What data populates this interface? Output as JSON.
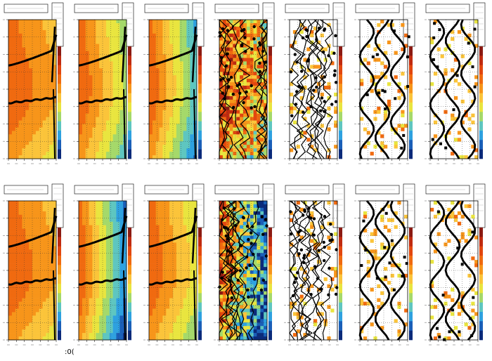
{
  "figure": {
    "footer_text": ":0(",
    "colors": {
      "palette_hot": [
        "#8b1a12",
        "#c02b10",
        "#e2470f",
        "#f06a10",
        "#f7951a",
        "#fbc43a",
        "#e9e53f",
        "#a5d96a",
        "#5ec6c0",
        "#2ea1e0",
        "#1a5fb8",
        "#0b2a7a"
      ],
      "marker": "#000000",
      "frame": "#000000",
      "grid": "#444444"
    }
  },
  "chart_data": [
    {
      "type": "heatmap",
      "row": 1,
      "col": 1,
      "title": "",
      "pattern": "smooth",
      "tilt": 0.25,
      "stripe_right": 0.92,
      "curves": [
        "upper",
        "lower"
      ]
    },
    {
      "type": "heatmap",
      "row": 1,
      "col": 2,
      "title": "",
      "pattern": "smooth",
      "tilt": 0.55,
      "stripe_right": 0.78,
      "curves": [
        "upper",
        "lower"
      ]
    },
    {
      "type": "heatmap",
      "row": 1,
      "col": 3,
      "title": "",
      "pattern": "smooth",
      "tilt": 0.75,
      "stripe_right": 0.7,
      "curves": [
        "upper",
        "lower"
      ]
    },
    {
      "type": "heatmap",
      "row": 1,
      "col": 4,
      "title": "",
      "pattern": "noisy",
      "tilt": 0.3,
      "stripe_right": 0.6,
      "curves": [
        "scatter"
      ]
    },
    {
      "type": "heatmap",
      "row": 1,
      "col": 5,
      "title": "",
      "pattern": "sparse",
      "tilt": 0.0,
      "stripe_right": 0.0,
      "curves": [
        "scatter"
      ]
    },
    {
      "type": "heatmap",
      "row": 1,
      "col": 6,
      "title": "",
      "pattern": "sparse",
      "tilt": 0.0,
      "stripe_right": 0.0,
      "curves": [
        "wavy"
      ]
    },
    {
      "type": "heatmap",
      "row": 1,
      "col": 7,
      "title": "",
      "pattern": "sparse",
      "tilt": 0.0,
      "stripe_right": 0.0,
      "curves": [
        "wavy"
      ]
    },
    {
      "type": "heatmap",
      "row": 2,
      "col": 1,
      "title": "",
      "pattern": "smooth",
      "tilt": 0.25,
      "stripe_right": 0.92,
      "curves": [
        "upper",
        "lower"
      ]
    },
    {
      "type": "heatmap",
      "row": 2,
      "col": 2,
      "title": "",
      "pattern": "smooth",
      "tilt": 0.9,
      "stripe_right": 0.5,
      "curves": [
        "upper",
        "lower"
      ]
    },
    {
      "type": "heatmap",
      "row": 2,
      "col": 3,
      "title": "",
      "pattern": "smooth",
      "tilt": 0.45,
      "stripe_right": 0.85,
      "curves": [
        "upper",
        "lower"
      ]
    },
    {
      "type": "heatmap",
      "row": 2,
      "col": 4,
      "title": "",
      "pattern": "noisy",
      "tilt": 1.0,
      "stripe_right": 0.4,
      "curves": [
        "scatter"
      ]
    },
    {
      "type": "heatmap",
      "row": 2,
      "col": 5,
      "title": "",
      "pattern": "sparse",
      "tilt": 0.0,
      "stripe_right": 0.0,
      "curves": [
        "scatter"
      ]
    },
    {
      "type": "heatmap",
      "row": 2,
      "col": 6,
      "title": "",
      "pattern": "sparse",
      "tilt": 0.0,
      "stripe_right": 0.0,
      "curves": [
        "wavy"
      ]
    },
    {
      "type": "heatmap",
      "row": 2,
      "col": 7,
      "title": "",
      "pattern": "sparse",
      "tilt": 0.0,
      "stripe_right": 0.0,
      "curves": [
        "wavy"
      ]
    }
  ]
}
